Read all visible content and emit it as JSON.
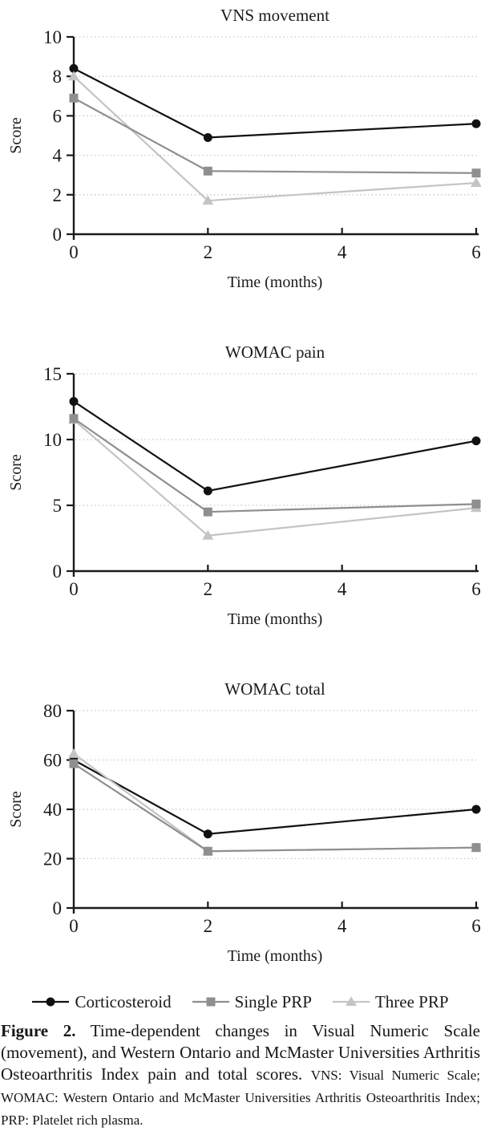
{
  "chart_data": [
    {
      "type": "line",
      "title": "VNS movement",
      "xlabel": "Time (months)",
      "ylabel": "Score",
      "x": [
        0,
        2,
        6
      ],
      "xticks": [
        0,
        2,
        4,
        6
      ],
      "yticks": [
        0,
        2,
        4,
        6,
        8,
        10
      ],
      "xlim": [
        0,
        6
      ],
      "ylim": [
        0,
        10
      ],
      "grid": "dotted-horizontal",
      "legend_position": "shared-bottom",
      "series": [
        {
          "name": "Corticosteroid",
          "marker": "circle",
          "color": "#111111",
          "values": [
            8.4,
            4.9,
            5.6
          ]
        },
        {
          "name": "Single PRP",
          "marker": "square",
          "color": "#8f8f8f",
          "values": [
            6.9,
            3.2,
            3.1
          ]
        },
        {
          "name": "Three PRP",
          "marker": "triangle",
          "color": "#c4c4c4",
          "values": [
            8.0,
            1.7,
            2.6
          ]
        }
      ]
    },
    {
      "type": "line",
      "title": "WOMAC pain",
      "xlabel": "Time (months)",
      "ylabel": "Score",
      "x": [
        0,
        2,
        6
      ],
      "xticks": [
        0,
        2,
        4,
        6
      ],
      "yticks": [
        0,
        5,
        10,
        15
      ],
      "xlim": [
        0,
        6
      ],
      "ylim": [
        0,
        15
      ],
      "grid": "dotted-horizontal",
      "legend_position": "shared-bottom",
      "series": [
        {
          "name": "Corticosteroid",
          "marker": "circle",
          "color": "#111111",
          "values": [
            12.9,
            6.1,
            9.9
          ]
        },
        {
          "name": "Single PRP",
          "marker": "square",
          "color": "#8f8f8f",
          "values": [
            11.6,
            4.5,
            5.1
          ]
        },
        {
          "name": "Three PRP",
          "marker": "triangle",
          "color": "#c4c4c4",
          "values": [
            11.5,
            2.7,
            4.8
          ]
        }
      ]
    },
    {
      "type": "line",
      "title": "WOMAC total",
      "xlabel": "Time (months)",
      "ylabel": "Score",
      "x": [
        0,
        2,
        6
      ],
      "xticks": [
        0,
        2,
        4,
        6
      ],
      "yticks": [
        0,
        20,
        40,
        60,
        80
      ],
      "xlim": [
        0,
        6
      ],
      "ylim": [
        0,
        80
      ],
      "grid": "dotted-horizontal",
      "legend_position": "shared-bottom",
      "series": [
        {
          "name": "Corticosteroid",
          "marker": "circle",
          "color": "#111111",
          "values": [
            60,
            30,
            40
          ]
        },
        {
          "name": "Single PRP",
          "marker": "square",
          "color": "#8f8f8f",
          "values": [
            58.5,
            23,
            24.5
          ]
        },
        {
          "name": "Three PRP",
          "marker": "triangle",
          "color": "#c4c4c4",
          "values": [
            62.5,
            23,
            24.5
          ]
        }
      ]
    }
  ],
  "legend": {
    "items": [
      {
        "label": "Corticosteroid",
        "marker": "circle",
        "color": "#111111"
      },
      {
        "label": "Single PRP",
        "marker": "square",
        "color": "#8f8f8f"
      },
      {
        "label": "Three PRP",
        "marker": "triangle",
        "color": "#c4c4c4"
      }
    ]
  },
  "caption": {
    "label": "Figure 2.",
    "main": "Time-dependent changes in Visual Numeric Scale (movement), and Western Ontario and McMaster Universities Arthritis Osteoarthritis Index pain and total scores.",
    "abbreviations": "VNS: Visual Numeric Scale; WOMAC: Western Ontario and McMaster Universities Arthritis Osteoarthritis Index; PRP: Platelet rich plasma."
  },
  "colors": {
    "axis": "#1b1b1b",
    "gridline": "#cbcbcb",
    "background": "#ffffff"
  }
}
